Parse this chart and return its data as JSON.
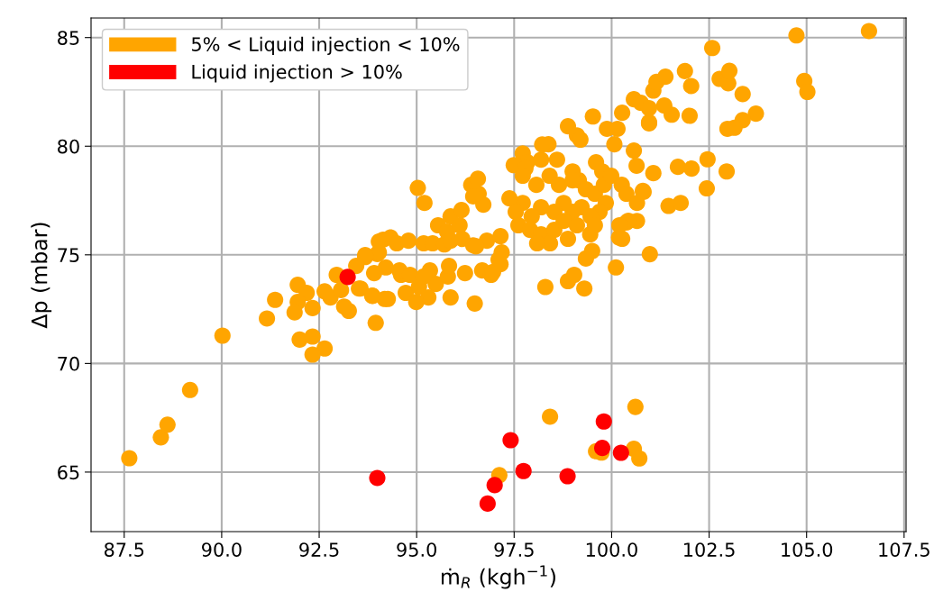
{
  "chart_data": {
    "type": "scatter",
    "xlabel": "ṁ$_{R}$ (kgh$^{−1}$)",
    "ylabel": "Δp (mbar)",
    "xlim": [
      86.65,
      107.55
    ],
    "ylim": [
      62.26,
      85.9
    ],
    "xticks": [
      {
        "value": 87.5,
        "label": "87.5"
      },
      {
        "value": 90,
        "label": "90.0"
      },
      {
        "value": 92.5,
        "label": "92.5"
      },
      {
        "value": 95,
        "label": "95.0"
      },
      {
        "value": 97.5,
        "label": "97.5"
      },
      {
        "value": 100,
        "label": "100.0"
      },
      {
        "value": 102.5,
        "label": "102.5"
      },
      {
        "value": 105,
        "label": "105.0"
      },
      {
        "value": 107.5,
        "label": "107.5"
      }
    ],
    "yticks": [
      65,
      70,
      75,
      80,
      85
    ],
    "grid": true,
    "legend": "top left",
    "marker": "circle",
    "series": [
      {
        "name": "5% < Liquid injection < 10%",
        "color": "#ffa500",
        "x": [
          87.63,
          88.44,
          88.61,
          89.19,
          90.02,
          91.16,
          91.37,
          91.95,
          92.18,
          91.95,
          91.87,
          92.33,
          92.0,
          92.33,
          92.64,
          92.33,
          92.64,
          92.79,
          92.95,
          93.06,
          93.26,
          93.14,
          93.45,
          93.52,
          93.68,
          93.99,
          93.95,
          93.87,
          94.18,
          94.14,
          94.33,
          94.49,
          93.56,
          93.86,
          94.26,
          94.21,
          94.6,
          94.72,
          95.49,
          95.8,
          94.03,
          94.03,
          94.79,
          95.18,
          95.41,
          95.71,
          95.87,
          96.17,
          96.45,
          96.8,
          97.15,
          93.68,
          93.91,
          94.56,
          94.83,
          95.06,
          95.3,
          95.87,
          95.34,
          95.18,
          94.99,
          95.83,
          96.24,
          96.68,
          97.15,
          96.49,
          96.91,
          96.52,
          97.18,
          95.03,
          95.2,
          95.55,
          95.78,
          95.87,
          96.4,
          96.57,
          96.59,
          96.71,
          96.1,
          96.15,
          96.45,
          96.96,
          97.1,
          97.72,
          97.84,
          97.49,
          98.19,
          98.6,
          98.38,
          98.22,
          98.88,
          99.11,
          99.2,
          99.52,
          99.88,
          100.15,
          100.07,
          100.27,
          100.96,
          101.54,
          99.6,
          99.76,
          99.0,
          99.16,
          97.79,
          97.72,
          98.07,
          98.41,
          98.65,
          99.0,
          99.34,
          99.57,
          99.8,
          99.99,
          100.26,
          100.38,
          99.85,
          99.69,
          99.46,
          99.23,
          99.0,
          98.77,
          98.53,
          98.19,
          97.95,
          97.72,
          97.54,
          97.38,
          97.61,
          97.91,
          98.19,
          98.53,
          98.77,
          99.11,
          99.45,
          99.57,
          98.88,
          98.42,
          98.09,
          98.3,
          98.88,
          99.3,
          99.04,
          99.5,
          99.34,
          100.19,
          100.27,
          100.38,
          100.65,
          100.8,
          100.65,
          100.43,
          100.2,
          101.46,
          101.77,
          100.98,
          100.11,
          100.57,
          100.64,
          101.07,
          100.82,
          100.57,
          100.75,
          100.96,
          101.07,
          101.15,
          101.38,
          101.88,
          102.04,
          101.35,
          100.96,
          102.0,
          102.58,
          102.77,
          102.99,
          103.02,
          103.36,
          103.7,
          103.36,
          103.15,
          102.97,
          102.46,
          101.7,
          102.05,
          102.95,
          102.44,
          104.74,
          106.6,
          104.94,
          105.02,
          97.12,
          98.42,
          99.6,
          99.74,
          100.61,
          100.57,
          100.71
        ],
        "values": [
          65.64,
          66.6,
          67.18,
          68.78,
          71.28,
          72.07,
          72.93,
          73.62,
          73.25,
          72.83,
          72.35,
          72.55,
          71.1,
          71.24,
          70.69,
          70.41,
          73.32,
          73.04,
          74.08,
          73.38,
          72.42,
          72.62,
          74.49,
          73.45,
          74.9,
          75.04,
          71.87,
          73.11,
          72.97,
          75.7,
          75.8,
          75.53,
          73.45,
          73.12,
          72.97,
          74.42,
          74.08,
          73.25,
          73.66,
          74.0,
          75.61,
          75.11,
          75.65,
          75.53,
          75.53,
          75.48,
          75.65,
          75.73,
          75.44,
          75.65,
          75.86,
          74.99,
          74.16,
          74.28,
          74.08,
          73.54,
          73.04,
          73.04,
          74.28,
          74.0,
          72.83,
          74.49,
          74.16,
          74.28,
          74.57,
          72.76,
          74.08,
          75.39,
          75.11,
          78.08,
          77.39,
          76.36,
          76.07,
          76.77,
          78.22,
          78.5,
          77.81,
          77.31,
          76.36,
          77.06,
          77.69,
          74.21,
          74.78,
          79.67,
          79.26,
          79.13,
          79.38,
          79.38,
          80.09,
          80.08,
          80.92,
          80.5,
          80.3,
          81.37,
          80.8,
          80.8,
          80.09,
          81.54,
          81.05,
          81.45,
          79.26,
          78.84,
          78.84,
          78.43,
          78.98,
          78.64,
          78.22,
          78.64,
          78.22,
          78.43,
          78.02,
          77.81,
          78.22,
          78.64,
          78.22,
          77.81,
          77.39,
          76.98,
          76.77,
          77.19,
          76.98,
          77.39,
          76.98,
          77.19,
          76.77,
          77.39,
          76.98,
          77.6,
          76.36,
          76.15,
          75.94,
          76.15,
          76.56,
          76.36,
          75.94,
          76.36,
          75.74,
          75.53,
          75.53,
          73.52,
          73.79,
          73.45,
          74.08,
          75.18,
          74.83,
          75.8,
          75.74,
          76.49,
          76.56,
          77.94,
          77.39,
          76.57,
          76.36,
          77.25,
          77.39,
          75.03,
          74.42,
          79.8,
          79.1,
          78.76,
          77.9,
          82.16,
          82.0,
          81.75,
          82.56,
          82.96,
          83.2,
          83.46,
          82.77,
          81.87,
          81.1,
          81.4,
          84.52,
          83.1,
          82.9,
          83.47,
          82.4,
          81.5,
          81.2,
          80.85,
          80.8,
          79.4,
          79.05,
          78.97,
          78.84,
          78.06,
          85.1,
          85.3,
          83.0,
          82.5,
          64.86,
          67.55,
          65.96,
          65.9,
          68.0,
          66.07,
          65.63
        ]
      },
      {
        "name": "Liquid injection > 10%",
        "color": "#ff0000",
        "x": [
          93.23,
          93.99,
          96.82,
          97.0,
          97.41,
          97.74,
          98.87,
          99.8,
          99.76,
          100.24
        ],
        "values": [
          73.98,
          64.73,
          63.55,
          64.4,
          66.47,
          65.05,
          64.81,
          67.33,
          66.11,
          65.89
        ]
      }
    ]
  }
}
